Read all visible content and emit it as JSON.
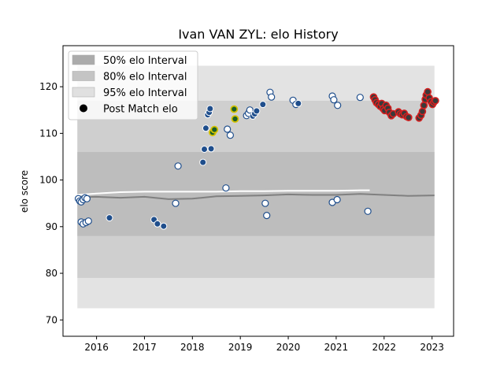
{
  "chart_data": {
    "type": "scatter",
    "title": "Ivan VAN ZYL: elo History",
    "xlabel": "",
    "ylabel": "elo score",
    "xlim": [
      2015.3,
      2023.45
    ],
    "ylim": [
      66.5,
      128.8
    ],
    "x_ticks": [
      2016,
      2017,
      2018,
      2019,
      2020,
      2021,
      2022,
      2023
    ],
    "y_ticks": [
      70,
      80,
      90,
      100,
      110,
      120
    ],
    "legend": {
      "placement": "top-left",
      "entries": [
        "50% elo Interval",
        "80% elo Interval",
        "95% elo Interval",
        "Post Match elo"
      ]
    },
    "bands": [
      {
        "name": "95% elo Interval",
        "x_start": 2015.6,
        "x_end": 2023.05,
        "lower": 72.5,
        "upper": 124.5,
        "color": "#e3e3e3"
      },
      {
        "name": "80% elo Interval",
        "x_start": 2015.6,
        "x_end": 2023.05,
        "lower": 79,
        "upper": 117,
        "color": "#cfcfcf"
      },
      {
        "name": "50% elo Interval",
        "x_start": 2015.6,
        "x_end": 2023.05,
        "lower": 88,
        "upper": 106,
        "color": "#bdbdbd"
      }
    ],
    "median_line": {
      "color": "#ffffff",
      "points": [
        [
          2015.6,
          96.8
        ],
        [
          2016.0,
          97.1
        ],
        [
          2016.5,
          97.4
        ],
        [
          2017.0,
          97.5
        ],
        [
          2017.5,
          97.5
        ],
        [
          2018.0,
          97.5
        ],
        [
          2018.5,
          97.5
        ],
        [
          2019.0,
          97.6
        ],
        [
          2019.5,
          97.6
        ],
        [
          2020.0,
          97.7
        ],
        [
          2020.5,
          97.7
        ],
        [
          2021.0,
          97.7
        ],
        [
          2021.5,
          97.8
        ],
        [
          2021.7,
          97.8
        ]
      ]
    },
    "secondary_line": {
      "color": "#808080",
      "points": [
        [
          2015.6,
          96.3
        ],
        [
          2016.0,
          96.4
        ],
        [
          2016.5,
          96.2
        ],
        [
          2017.0,
          96.4
        ],
        [
          2017.5,
          95.9
        ],
        [
          2018.0,
          96.0
        ],
        [
          2018.5,
          96.5
        ],
        [
          2019.0,
          96.6
        ],
        [
          2019.5,
          96.7
        ],
        [
          2020.0,
          96.9
        ],
        [
          2020.5,
          96.8
        ],
        [
          2021.0,
          96.8
        ],
        [
          2021.5,
          97.0
        ],
        [
          2022.0,
          96.8
        ],
        [
          2022.5,
          96.6
        ],
        [
          2023.05,
          96.7
        ]
      ]
    },
    "series": [
      {
        "name": "Post Match elo",
        "marker_fill": "#1f4e8c",
        "points": [
          {
            "x": 2015.62,
            "y": 96.0,
            "variant": "white"
          },
          {
            "x": 2015.65,
            "y": 95.5,
            "variant": "white"
          },
          {
            "x": 2015.68,
            "y": 95.3,
            "variant": "white"
          },
          {
            "x": 2015.72,
            "y": 95.8,
            "variant": "white"
          },
          {
            "x": 2015.76,
            "y": 96.2,
            "variant": "white"
          },
          {
            "x": 2015.8,
            "y": 96.0,
            "variant": "white"
          },
          {
            "x": 2015.68,
            "y": 91.0,
            "variant": "white"
          },
          {
            "x": 2015.72,
            "y": 90.6,
            "variant": "white"
          },
          {
            "x": 2015.78,
            "y": 90.9,
            "variant": "white"
          },
          {
            "x": 2015.83,
            "y": 91.2,
            "variant": "white"
          },
          {
            "x": 2016.27,
            "y": 91.9,
            "variant": "blue"
          },
          {
            "x": 2017.2,
            "y": 91.5,
            "variant": "blue"
          },
          {
            "x": 2017.27,
            "y": 90.6,
            "variant": "blue"
          },
          {
            "x": 2017.4,
            "y": 90.1,
            "variant": "blue"
          },
          {
            "x": 2017.65,
            "y": 95.0,
            "variant": "white"
          },
          {
            "x": 2017.7,
            "y": 103.0,
            "variant": "white"
          },
          {
            "x": 2018.22,
            "y": 103.8,
            "variant": "blue"
          },
          {
            "x": 2018.25,
            "y": 106.6,
            "variant": "blue"
          },
          {
            "x": 2018.28,
            "y": 111.1,
            "variant": "blue"
          },
          {
            "x": 2018.32,
            "y": 114.0,
            "variant": "blue"
          },
          {
            "x": 2018.35,
            "y": 114.5,
            "variant": "blue"
          },
          {
            "x": 2018.37,
            "y": 115.3,
            "variant": "blue"
          },
          {
            "x": 2018.39,
            "y": 106.7,
            "variant": "blue"
          },
          {
            "x": 2018.42,
            "y": 110.2,
            "variant": "gold"
          },
          {
            "x": 2018.46,
            "y": 110.8,
            "variant": "gold"
          },
          {
            "x": 2018.7,
            "y": 98.3,
            "variant": "white"
          },
          {
            "x": 2018.73,
            "y": 110.9,
            "variant": "white"
          },
          {
            "x": 2018.79,
            "y": 109.6,
            "variant": "white"
          },
          {
            "x": 2018.87,
            "y": 115.2,
            "variant": "gold"
          },
          {
            "x": 2018.89,
            "y": 113.1,
            "variant": "gold"
          },
          {
            "x": 2019.13,
            "y": 113.8,
            "variant": "white"
          },
          {
            "x": 2019.17,
            "y": 114.3,
            "variant": "white"
          },
          {
            "x": 2019.2,
            "y": 115.0,
            "variant": "white"
          },
          {
            "x": 2019.26,
            "y": 113.7,
            "variant": "blue"
          },
          {
            "x": 2019.3,
            "y": 114.2,
            "variant": "blue"
          },
          {
            "x": 2019.34,
            "y": 114.8,
            "variant": "blue"
          },
          {
            "x": 2019.47,
            "y": 116.2,
            "variant": "blue"
          },
          {
            "x": 2019.52,
            "y": 95.0,
            "variant": "white"
          },
          {
            "x": 2019.55,
            "y": 92.4,
            "variant": "white"
          },
          {
            "x": 2019.62,
            "y": 118.8,
            "variant": "white"
          },
          {
            "x": 2019.65,
            "y": 117.8,
            "variant": "white"
          },
          {
            "x": 2020.1,
            "y": 117.1,
            "variant": "white"
          },
          {
            "x": 2020.16,
            "y": 116.2,
            "variant": "white"
          },
          {
            "x": 2020.21,
            "y": 116.4,
            "variant": "blue"
          },
          {
            "x": 2020.92,
            "y": 118.0,
            "variant": "white"
          },
          {
            "x": 2020.95,
            "y": 117.2,
            "variant": "white"
          },
          {
            "x": 2020.92,
            "y": 95.2,
            "variant": "white"
          },
          {
            "x": 2021.02,
            "y": 95.8,
            "variant": "white"
          },
          {
            "x": 2021.03,
            "y": 116.0,
            "variant": "white"
          },
          {
            "x": 2021.5,
            "y": 117.7,
            "variant": "white"
          },
          {
            "x": 2021.66,
            "y": 93.3,
            "variant": "white"
          },
          {
            "x": 2021.78,
            "y": 117.8,
            "variant": "red"
          },
          {
            "x": 2021.81,
            "y": 117.2,
            "variant": "red"
          },
          {
            "x": 2021.84,
            "y": 116.6,
            "variant": "red"
          },
          {
            "x": 2021.88,
            "y": 116.2,
            "variant": "red"
          },
          {
            "x": 2021.92,
            "y": 115.8,
            "variant": "red"
          },
          {
            "x": 2021.95,
            "y": 116.4,
            "variant": "red"
          },
          {
            "x": 2021.98,
            "y": 115.3,
            "variant": "red"
          },
          {
            "x": 2022.01,
            "y": 114.9,
            "variant": "red"
          },
          {
            "x": 2022.04,
            "y": 116.0,
            "variant": "red"
          },
          {
            "x": 2022.08,
            "y": 115.4,
            "variant": "red"
          },
          {
            "x": 2022.11,
            "y": 114.5,
            "variant": "red"
          },
          {
            "x": 2022.15,
            "y": 113.8,
            "variant": "red"
          },
          {
            "x": 2022.19,
            "y": 114.2,
            "variant": "red"
          },
          {
            "x": 2022.3,
            "y": 114.6,
            "variant": "red"
          },
          {
            "x": 2022.34,
            "y": 114.2,
            "variant": "red"
          },
          {
            "x": 2022.38,
            "y": 114.0,
            "variant": "red"
          },
          {
            "x": 2022.42,
            "y": 114.3,
            "variant": "red"
          },
          {
            "x": 2022.47,
            "y": 113.6,
            "variant": "red"
          },
          {
            "x": 2022.51,
            "y": 113.4,
            "variant": "red"
          },
          {
            "x": 2022.73,
            "y": 113.3,
            "variant": "red"
          },
          {
            "x": 2022.77,
            "y": 113.9,
            "variant": "red"
          },
          {
            "x": 2022.8,
            "y": 114.7,
            "variant": "red"
          },
          {
            "x": 2022.83,
            "y": 116.0,
            "variant": "red"
          },
          {
            "x": 2022.86,
            "y": 117.3,
            "variant": "red"
          },
          {
            "x": 2022.88,
            "y": 118.2,
            "variant": "red"
          },
          {
            "x": 2022.91,
            "y": 118.9,
            "variant": "red"
          },
          {
            "x": 2022.94,
            "y": 117.6,
            "variant": "red"
          },
          {
            "x": 2022.98,
            "y": 116.8,
            "variant": "red"
          },
          {
            "x": 2023.01,
            "y": 116.2,
            "variant": "red"
          },
          {
            "x": 2023.04,
            "y": 116.7,
            "variant": "red"
          },
          {
            "x": 2023.07,
            "y": 117.0,
            "variant": "red"
          }
        ]
      }
    ]
  }
}
